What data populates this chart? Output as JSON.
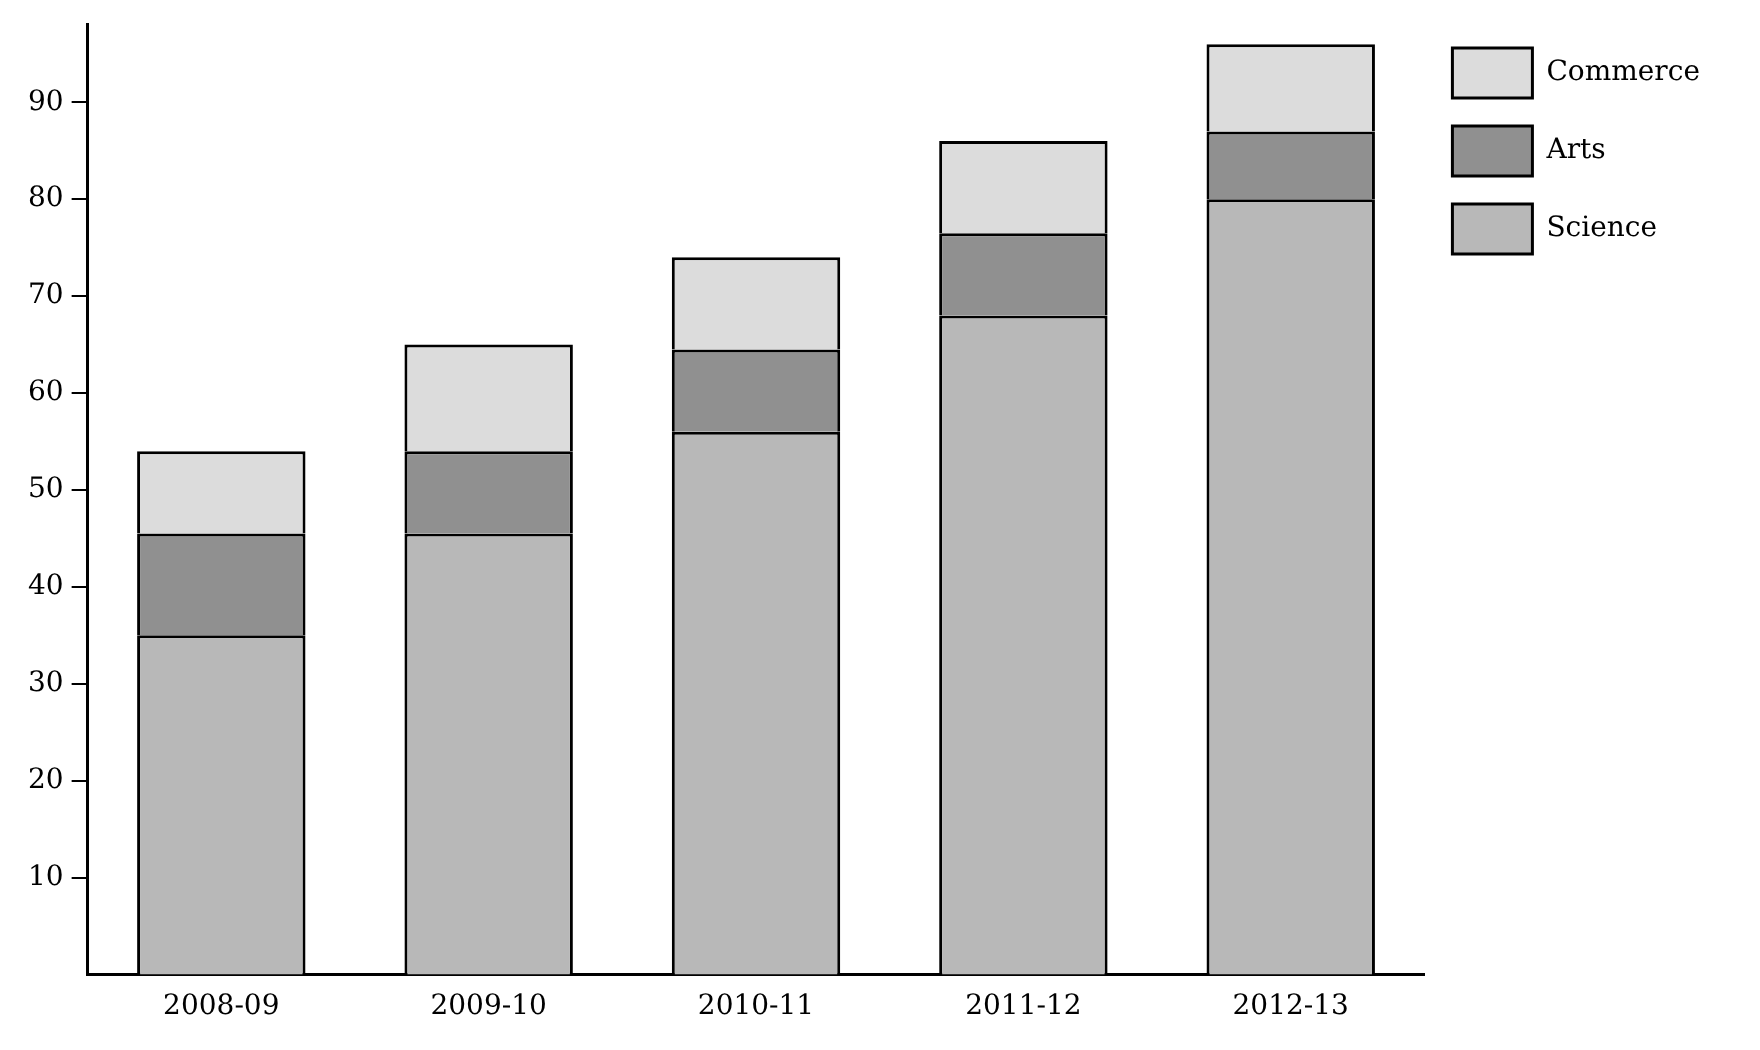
{
  "chart_data": {
    "type": "bar",
    "stacked": true,
    "categories": [
      "2008-09",
      "2009-10",
      "2010-11",
      "2011-12",
      "2012-13"
    ],
    "series": [
      {
        "name": "Science",
        "color": "#b8b8b8",
        "values": [
          35,
          45.5,
          56,
          68,
          80
        ]
      },
      {
        "name": "Arts",
        "color": "#909090",
        "values": [
          10.5,
          8.5,
          8.5,
          8.5,
          7
        ]
      },
      {
        "name": "Commerce",
        "color": "#dcdcdc",
        "values": [
          8.5,
          11,
          9.5,
          9.5,
          9
        ]
      }
    ],
    "ylim": [
      0,
      98
    ],
    "yticks": [
      10,
      20,
      30,
      40,
      50,
      60,
      70,
      80,
      90
    ],
    "grid": false,
    "legend": "top right"
  }
}
